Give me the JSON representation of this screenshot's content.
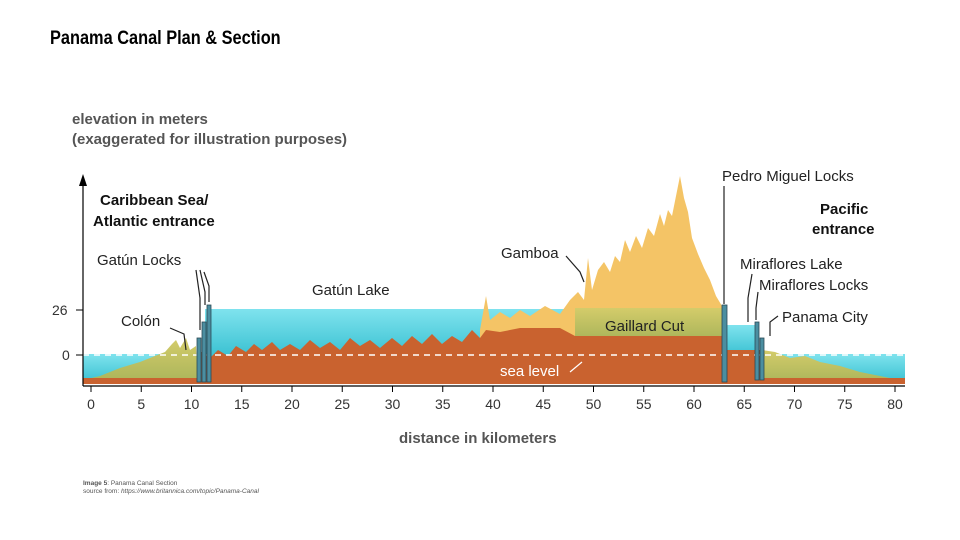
{
  "title": "Panama Canal Plan & Section",
  "y_axis_title": {
    "line1": "elevation in meters",
    "line2": "(exaggerated for illustration purposes)"
  },
  "x_axis_title": "distance in kilometers",
  "y_ticks": [
    "26",
    "0"
  ],
  "x_ticks": [
    "0",
    "5",
    "10",
    "15",
    "20",
    "25",
    "30",
    "35",
    "40",
    "45",
    "50",
    "55",
    "60",
    "65",
    "70",
    "75",
    "80"
  ],
  "labels": {
    "caribbean_1": "Caribbean Sea/",
    "caribbean_2": "Atlantic entrance",
    "gatun_locks": "Gatún Locks",
    "colon": "Colón",
    "gatun_lake": "Gatún Lake",
    "gamboa": "Gamboa",
    "gaillard_cut": "Gaillard Cut",
    "sea_level": "sea level",
    "pedro_miguel": "Pedro Miguel Locks",
    "pacific_1": "Pacific",
    "pacific_2": "entrance",
    "miraflores_lake": "Miraflores Lake",
    "miraflores_locks": "Miraflores Locks",
    "panama_city": "Panama City"
  },
  "caption": {
    "label": "Image 5",
    "text": ": Panama Canal Section",
    "source_prefix": "source from: ",
    "source_url": "https://www.britannica.com/topic/Panama-Canal"
  },
  "colors": {
    "water": "#5fd3e0",
    "rock": "#c9622f",
    "terrain": "#f2c060",
    "terrain_low": "#c8c86a"
  }
}
